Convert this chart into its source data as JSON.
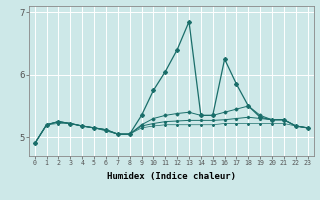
{
  "xlabel": "Humidex (Indice chaleur)",
  "ylabel": "",
  "background_color": "#cde8e8",
  "grid_color": "#ffffff",
  "line_color": "#1a6e6a",
  "x_values": [
    0,
    1,
    2,
    3,
    4,
    5,
    6,
    7,
    8,
    9,
    10,
    11,
    12,
    13,
    14,
    15,
    16,
    17,
    18,
    19,
    20,
    21,
    22,
    23
  ],
  "y_main": [
    4.9,
    5.2,
    5.25,
    5.22,
    5.18,
    5.15,
    5.12,
    5.05,
    5.05,
    5.35,
    5.75,
    6.05,
    6.4,
    6.85,
    5.35,
    5.35,
    6.25,
    5.85,
    5.5,
    5.32,
    5.28,
    5.28,
    5.18,
    5.15
  ],
  "y_mid1": [
    4.9,
    5.2,
    5.25,
    5.22,
    5.18,
    5.15,
    5.12,
    5.05,
    5.05,
    5.2,
    5.3,
    5.35,
    5.38,
    5.4,
    5.35,
    5.35,
    5.4,
    5.45,
    5.5,
    5.35,
    5.28,
    5.28,
    5.18,
    5.15
  ],
  "y_mid2": [
    4.9,
    5.2,
    5.25,
    5.22,
    5.18,
    5.15,
    5.12,
    5.05,
    5.05,
    5.18,
    5.22,
    5.25,
    5.26,
    5.27,
    5.27,
    5.27,
    5.28,
    5.3,
    5.32,
    5.3,
    5.28,
    5.28,
    5.18,
    5.15
  ],
  "y_low": [
    4.9,
    5.2,
    5.22,
    5.22,
    5.18,
    5.15,
    5.1,
    5.05,
    5.05,
    5.15,
    5.18,
    5.2,
    5.2,
    5.2,
    5.2,
    5.2,
    5.22,
    5.22,
    5.22,
    5.22,
    5.22,
    5.22,
    5.18,
    5.15
  ],
  "ylim": [
    4.7,
    7.1
  ],
  "ytick_locs": [
    5,
    6,
    7
  ],
  "ytick_labels": [
    "5",
    "6",
    "7"
  ],
  "xlim": [
    -0.5,
    23.5
  ],
  "figsize": [
    3.2,
    2.0
  ],
  "dpi": 100
}
